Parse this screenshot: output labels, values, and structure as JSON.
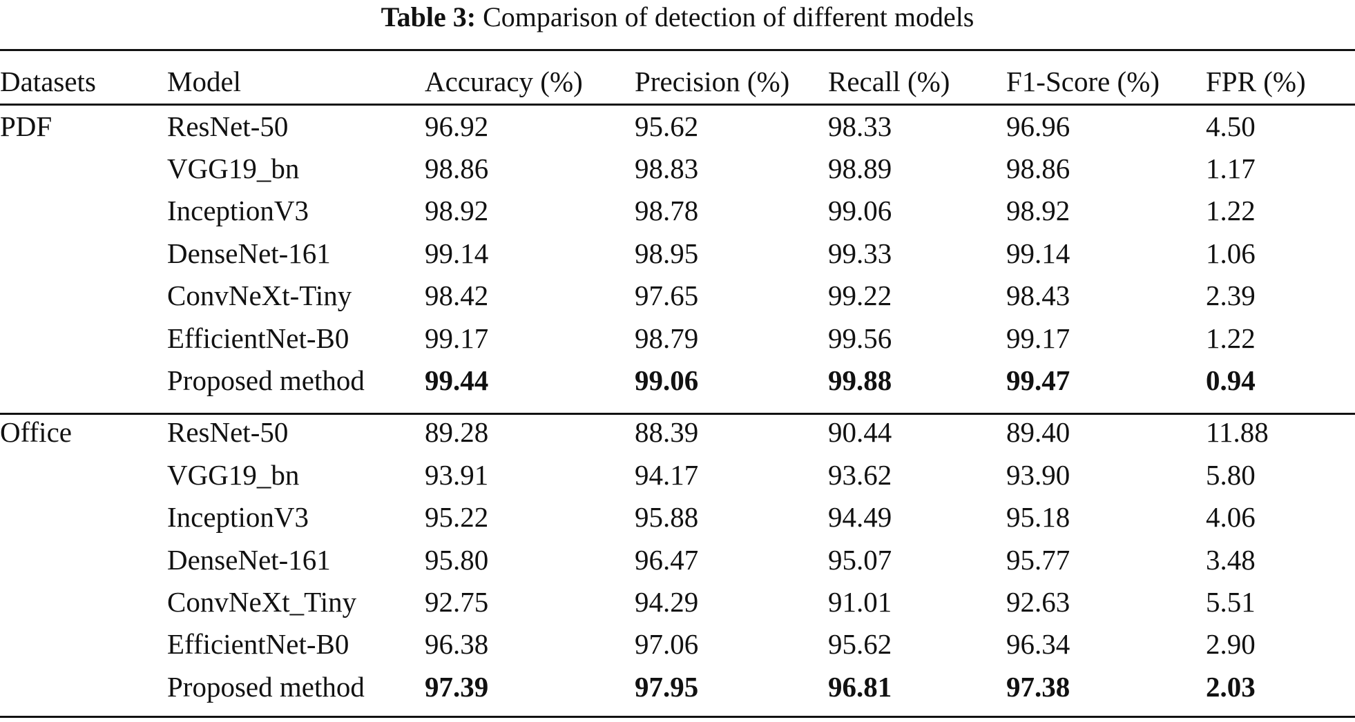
{
  "caption": {
    "label": "Table 3:",
    "text": "Comparison of detection of different models"
  },
  "headers": [
    "Datasets",
    "Model",
    "Accuracy (%)",
    "Precision (%)",
    "Recall (%)",
    "F1-Score (%)",
    "FPR (%)"
  ],
  "groups": [
    {
      "dataset": "PDF",
      "rows": [
        {
          "model": "ResNet-50",
          "accuracy": "96.92",
          "precision": "95.62",
          "recall": "98.33",
          "f1": "96.96",
          "fpr": "4.50"
        },
        {
          "model": "VGG19_bn",
          "accuracy": "98.86",
          "precision": "98.83",
          "recall": "98.89",
          "f1": "98.86",
          "fpr": "1.17"
        },
        {
          "model": "InceptionV3",
          "accuracy": "98.92",
          "precision": "98.78",
          "recall": "99.06",
          "f1": "98.92",
          "fpr": "1.22"
        },
        {
          "model": "DenseNet-161",
          "accuracy": "99.14",
          "precision": "98.95",
          "recall": "99.33",
          "f1": "99.14",
          "fpr": "1.06"
        },
        {
          "model": "ConvNeXt-Tiny",
          "accuracy": "98.42",
          "precision": "97.65",
          "recall": "99.22",
          "f1": "98.43",
          "fpr": "2.39"
        },
        {
          "model": "EfficientNet-B0",
          "accuracy": "99.17",
          "precision": "98.79",
          "recall": "99.56",
          "f1": "99.17",
          "fpr": "1.22"
        },
        {
          "model": "Proposed method",
          "accuracy": "99.44",
          "precision": "99.06",
          "recall": "99.88",
          "f1": "99.47",
          "fpr": "0.94"
        }
      ]
    },
    {
      "dataset": "Office",
      "rows": [
        {
          "model": "ResNet-50",
          "accuracy": "89.28",
          "precision": "88.39",
          "recall": "90.44",
          "f1": "89.40",
          "fpr": "11.88"
        },
        {
          "model": "VGG19_bn",
          "accuracy": "93.91",
          "precision": "94.17",
          "recall": "93.62",
          "f1": "93.90",
          "fpr": "5.80"
        },
        {
          "model": "InceptionV3",
          "accuracy": "95.22",
          "precision": "95.88",
          "recall": "94.49",
          "f1": "95.18",
          "fpr": "4.06"
        },
        {
          "model": "DenseNet-161",
          "accuracy": "95.80",
          "precision": "96.47",
          "recall": "95.07",
          "f1": "95.77",
          "fpr": "3.48"
        },
        {
          "model": "ConvNeXt_Tiny",
          "accuracy": "92.75",
          "precision": "94.29",
          "recall": "91.01",
          "f1": "92.63",
          "fpr": "5.51"
        },
        {
          "model": "EfficientNet-B0",
          "accuracy": "96.38",
          "precision": "97.06",
          "recall": "95.62",
          "f1": "96.34",
          "fpr": "2.90"
        },
        {
          "model": "Proposed method",
          "accuracy": "97.39",
          "precision": "97.95",
          "recall": "96.81",
          "f1": "97.38",
          "fpr": "2.03"
        }
      ]
    }
  ]
}
